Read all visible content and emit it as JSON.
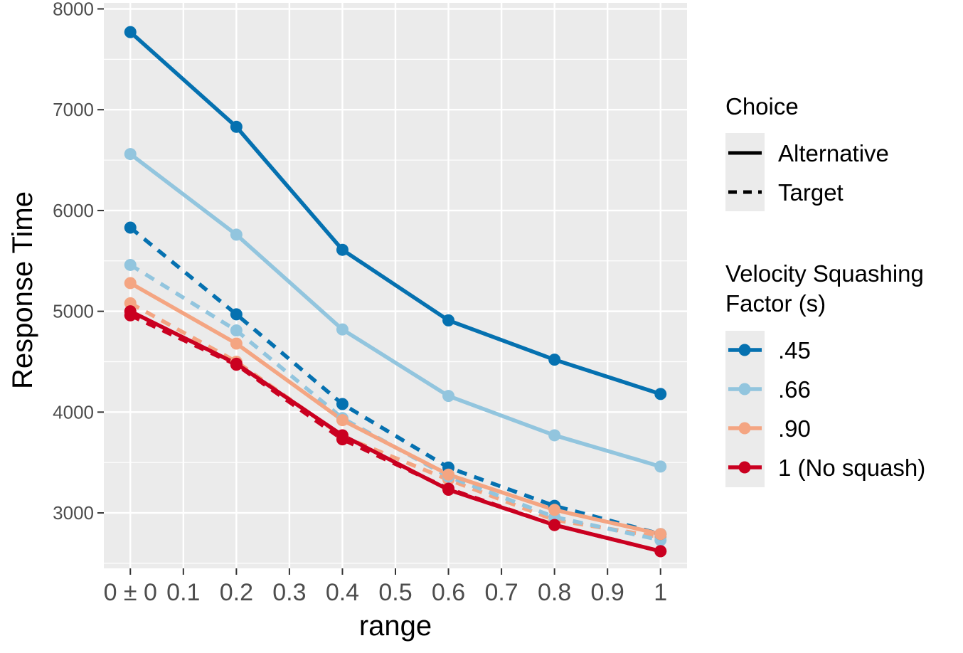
{
  "chart_data": {
    "type": "line",
    "title": "",
    "xlabel": "range",
    "ylabel": "Response Time",
    "xlim": [
      -0.05,
      1.05
    ],
    "ylim": [
      2450,
      8060
    ],
    "x_ticks": [
      {
        "value": 0,
        "label": "0 ± 0"
      },
      {
        "value": 0.1,
        "label": "0.1"
      },
      {
        "value": 0.2,
        "label": "0.2"
      },
      {
        "value": 0.3,
        "label": "0.3"
      },
      {
        "value": 0.4,
        "label": "0.4"
      },
      {
        "value": 0.5,
        "label": "0.5"
      },
      {
        "value": 0.6,
        "label": "0.6"
      },
      {
        "value": 0.7,
        "label": "0.7"
      },
      {
        "value": 0.8,
        "label": "0.8"
      },
      {
        "value": 0.9,
        "label": "0.9"
      },
      {
        "value": 1,
        "label": "1"
      }
    ],
    "y_ticks": [
      3000,
      4000,
      5000,
      6000,
      7000,
      8000
    ],
    "y_tick_labels": [
      "3000",
      "4000",
      "5000",
      "6000",
      "7000",
      "8000"
    ],
    "grid": true,
    "x": [
      0,
      0.2,
      0.4,
      0.6,
      0.8,
      1
    ],
    "series": [
      {
        "name": ".90 Target",
        "factor": ".90",
        "choice": "Target",
        "color": "#F4A582",
        "values": [
          5080,
          4500,
          3760,
          3330,
          2930,
          2760
        ]
      },
      {
        "name": ".66 Target",
        "factor": ".66",
        "choice": "Target",
        "color": "#92C5DE",
        "values": [
          5460,
          4810,
          3940,
          3360,
          2960,
          2730
        ]
      },
      {
        "name": "1 Target",
        "factor": "1 (No squash)",
        "choice": "Target",
        "color": "#CA0020",
        "values": [
          4960,
          4470,
          3730,
          3240,
          2880,
          2620
        ]
      },
      {
        "name": ".45 Target",
        "factor": ".45",
        "choice": "Target",
        "color": "#0571B0",
        "values": [
          5830,
          4970,
          4080,
          3450,
          3070,
          2790
        ]
      },
      {
        "name": "1 Alternative",
        "factor": "1 (No squash)",
        "choice": "Alternative",
        "color": "#CA0020",
        "values": [
          5000,
          4480,
          3770,
          3230,
          2880,
          2620
        ]
      },
      {
        "name": ".90 Alternative",
        "factor": ".90",
        "choice": "Alternative",
        "color": "#F4A582",
        "values": [
          5280,
          4680,
          3920,
          3380,
          3030,
          2790
        ]
      },
      {
        "name": ".66 Alternative",
        "factor": ".66",
        "choice": "Alternative",
        "color": "#92C5DE",
        "values": [
          6560,
          5760,
          4820,
          4160,
          3770,
          3460
        ]
      },
      {
        "name": ".45 Alternative",
        "factor": ".45",
        "choice": "Alternative",
        "color": "#0571B0",
        "values": [
          7770,
          6830,
          5610,
          4910,
          4520,
          4180
        ]
      }
    ],
    "legend": {
      "placement": "right",
      "choice_title": "Choice",
      "choice_items": [
        {
          "label": "Alternative",
          "style": "solid"
        },
        {
          "label": "Target",
          "style": "dashed"
        }
      ],
      "factor_title_line1": "Velocity Squashing",
      "factor_title_line2": "Factor (s)",
      "factor_items": [
        {
          "label": ".45",
          "color": "#0571B0"
        },
        {
          "label": ".66",
          "color": "#92C5DE"
        },
        {
          "label": ".90",
          "color": "#F4A582"
        },
        {
          "label": "1 (No squash)",
          "color": "#CA0020"
        }
      ]
    },
    "panel_background": "#EBEBEB",
    "grid_color": "#FFFFFF"
  }
}
